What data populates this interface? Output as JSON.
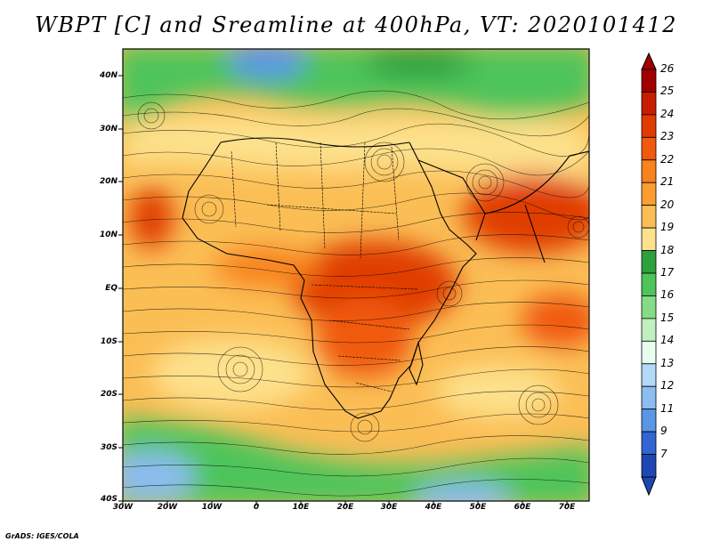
{
  "title": "WBPT [C] and Sreamline at 400hPa, VT: 2020101412",
  "credit": "GrADS: IGES/COLA",
  "map": {
    "lat_labels": [
      "40N",
      "30N",
      "20N",
      "10N",
      "EQ",
      "10S",
      "20S",
      "30S",
      "40S"
    ],
    "lon_labels": [
      "30W",
      "20W",
      "10W",
      "0",
      "10E",
      "20E",
      "30E",
      "40E",
      "50E",
      "60E",
      "70E"
    ],
    "lat_range": [
      -40,
      45
    ],
    "lon_range": [
      -30,
      76
    ],
    "regions": {
      "north_band": "green (16-18)",
      "sahara_belt": "light orange (19-21)",
      "equatorial_core": "red-orange (22-24)",
      "south_cold_band": "green/blue (12-17)"
    }
  },
  "colorbar": {
    "labels": [
      "26",
      "25",
      "24",
      "23",
      "22",
      "21",
      "20",
      "19",
      "18",
      "17",
      "16",
      "15",
      "14",
      "13",
      "12",
      "11",
      "9",
      "7"
    ],
    "colors": [
      "#a00000",
      "#c81e00",
      "#e03c00",
      "#f05a0a",
      "#f8821e",
      "#fa9e32",
      "#fbbe55",
      "#fde18c",
      "#2ea03c",
      "#4ec45a",
      "#86dc86",
      "#c0f0c0",
      "#e8fff0",
      "#b4d8f8",
      "#8cbcf0",
      "#5a96e6",
      "#3264d2",
      "#1e46b4"
    ]
  }
}
